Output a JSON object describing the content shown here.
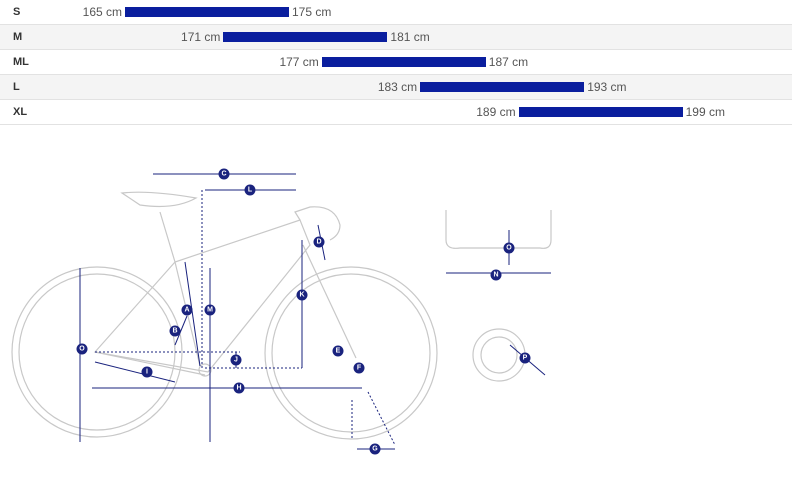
{
  "size_chart": {
    "rows": [
      {
        "size": "S",
        "min": 165,
        "max": 175,
        "min_label": "165 cm",
        "max_label": "175 cm"
      },
      {
        "size": "M",
        "min": 171,
        "max": 181,
        "min_label": "171 cm",
        "max_label": "181 cm"
      },
      {
        "size": "ML",
        "min": 177,
        "max": 187,
        "min_label": "177 cm",
        "max_label": "187 cm"
      },
      {
        "size": "L",
        "min": 183,
        "max": 193,
        "min_label": "183 cm",
        "max_label": "193 cm"
      },
      {
        "size": "XL",
        "min": 189,
        "max": 199,
        "min_label": "189 cm",
        "max_label": "199 cm"
      }
    ],
    "bar_color": "#0a1e9e"
  },
  "diagram": {
    "line_color": "#c8c8c8",
    "accent": "#1a237e",
    "labels": {
      "A": "A",
      "B": "B",
      "C": "C",
      "D": "D",
      "E": "E",
      "F": "F",
      "G": "G",
      "H": "H",
      "I": "I",
      "J": "J",
      "K": "K",
      "L": "L",
      "M": "M",
      "N": "N",
      "O": "O",
      "P": "P"
    }
  }
}
